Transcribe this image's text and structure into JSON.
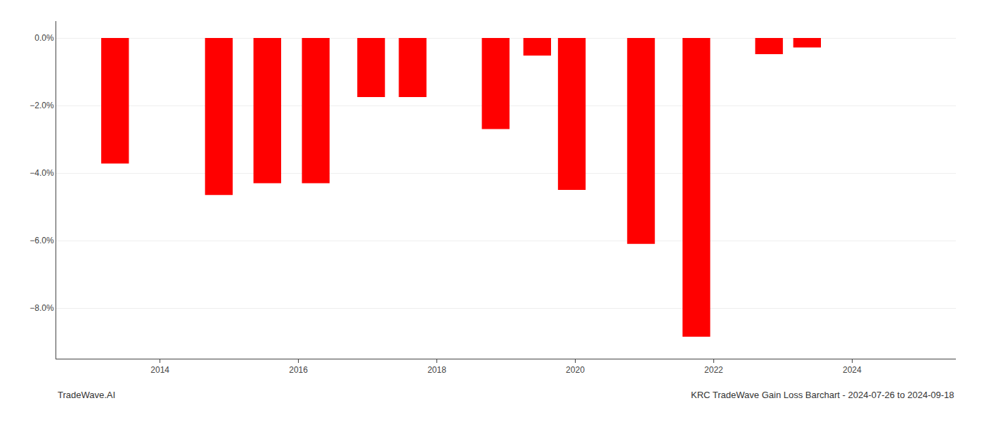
{
  "chart_data": {
    "type": "bar",
    "x": [
      2013.35,
      2014.85,
      2015.55,
      2016.25,
      2017.05,
      2017.65,
      2018.85,
      2019.45,
      2019.95,
      2020.95,
      2021.75,
      2022.8,
      2023.35
    ],
    "values": [
      -3.72,
      -4.65,
      -4.3,
      -4.3,
      -1.75,
      -1.75,
      -2.7,
      -0.52,
      -4.5,
      -6.1,
      -8.85,
      -0.48,
      -0.28
    ],
    "color": "#ff0000",
    "xlim": [
      2012.5,
      2025.5
    ],
    "xticks": [
      2014,
      2016,
      2018,
      2020,
      2022,
      2024
    ],
    "ylim": [
      -9.5,
      0.5
    ],
    "yticks": [
      {
        "value": 0.0,
        "label": "0.0%"
      },
      {
        "value": -2.0,
        "label": "−2.0%"
      },
      {
        "value": -4.0,
        "label": "−4.0%"
      },
      {
        "value": -6.0,
        "label": "−6.0%"
      },
      {
        "value": -8.0,
        "label": "−8.0%"
      }
    ],
    "grid": "y",
    "annotations": [
      {
        "text": "TradeWave.AI"
      },
      {
        "text": "KRC TradeWave Gain Loss Barchart - 2024-07-26 to 2024-09-18"
      }
    ]
  }
}
